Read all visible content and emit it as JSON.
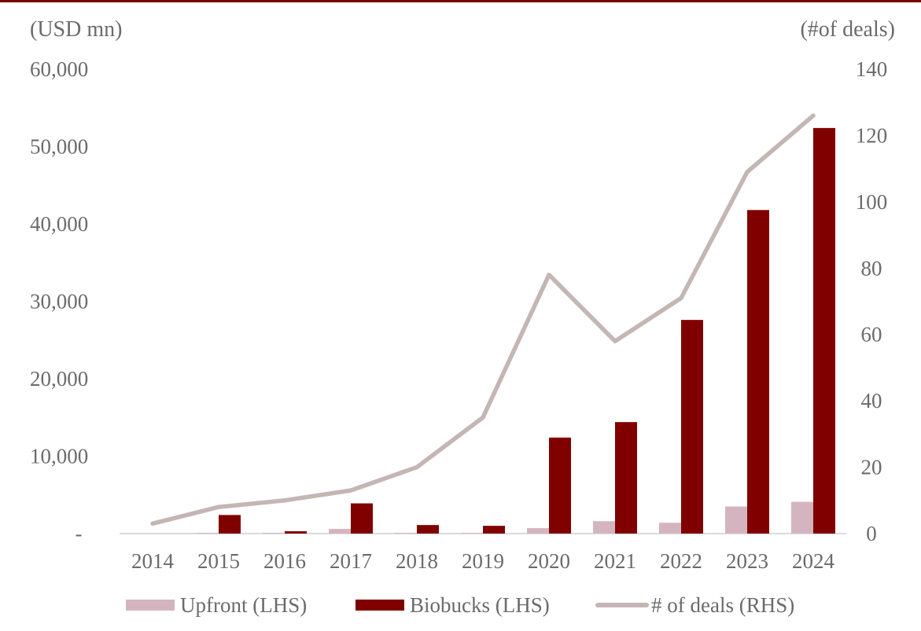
{
  "colors": {
    "upfront": "#d4b5bf",
    "biobucks": "#800000",
    "deals": "#c4b6b3",
    "axis_text": "#6b6b6b",
    "axis_line": "#cfcfcf",
    "top_rule": "#7a0000"
  },
  "chart_data": {
    "type": "bar",
    "secondary_type": "line",
    "left_unit_label": "(USD mn)",
    "right_unit_label": "(#of deals)",
    "categories": [
      "2014",
      "2015",
      "2016",
      "2017",
      "2018",
      "2019",
      "2020",
      "2021",
      "2022",
      "2023",
      "2024"
    ],
    "series": [
      {
        "name": "Upfront (LHS)",
        "axis": "left",
        "type": "bar",
        "values": [
          0,
          100,
          100,
          600,
          100,
          100,
          700,
          1600,
          1400,
          3500,
          4100
        ]
      },
      {
        "name": "Biobucks (LHS)",
        "axis": "left",
        "type": "bar",
        "values": [
          0,
          2400,
          300,
          3900,
          1100,
          1000,
          12400,
          14400,
          27600,
          41800,
          52400
        ]
      },
      {
        "name": "# of deals (RHS)",
        "axis": "right",
        "type": "line",
        "values": [
          3,
          8,
          10,
          13,
          20,
          35,
          78,
          58,
          71,
          109,
          126
        ]
      }
    ],
    "ylim_left": [
      0,
      60000
    ],
    "ylim_right": [
      0,
      140
    ],
    "yticks_left": [
      "-",
      "10,000",
      "20,000",
      "30,000",
      "40,000",
      "50,000",
      "60,000"
    ],
    "yticks_right": [
      "0",
      "20",
      "40",
      "60",
      "80",
      "100",
      "120",
      "140"
    ],
    "grid": false,
    "legend_position": "bottom"
  }
}
